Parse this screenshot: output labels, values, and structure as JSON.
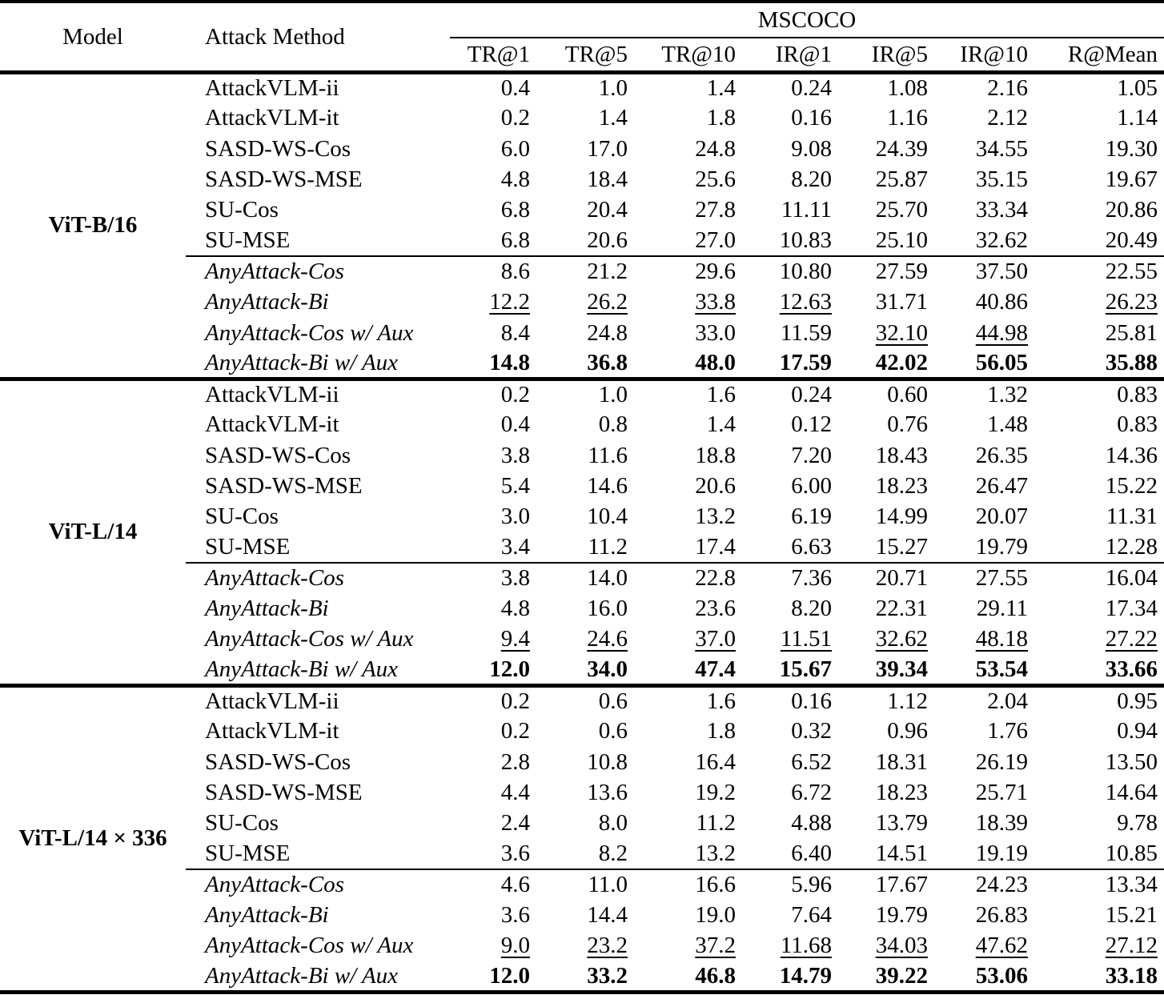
{
  "table": {
    "header": {
      "model": "Model",
      "attack_method": "Attack Method",
      "group": "MSCOCO",
      "metrics": [
        "TR@1",
        "TR@5",
        "TR@10",
        "IR@1",
        "IR@5",
        "IR@10",
        "R@Mean"
      ]
    },
    "blocks": [
      {
        "model": "ViT-B/16",
        "rows": [
          {
            "method": "AttackVLM-ii",
            "italic": false,
            "values": [
              "0.4",
              "1.0",
              "1.4",
              "0.24",
              "1.08",
              "2.16",
              "1.05"
            ],
            "styles": [
              "plain",
              "plain",
              "plain",
              "plain",
              "plain",
              "plain",
              "plain"
            ]
          },
          {
            "method": "AttackVLM-it",
            "italic": false,
            "values": [
              "0.2",
              "1.4",
              "1.8",
              "0.16",
              "1.16",
              "2.12",
              "1.14"
            ],
            "styles": [
              "plain",
              "plain",
              "plain",
              "plain",
              "plain",
              "plain",
              "plain"
            ]
          },
          {
            "method": "SASD-WS-Cos",
            "italic": false,
            "values": [
              "6.0",
              "17.0",
              "24.8",
              "9.08",
              "24.39",
              "34.55",
              "19.30"
            ],
            "styles": [
              "plain",
              "plain",
              "plain",
              "plain",
              "plain",
              "plain",
              "plain"
            ]
          },
          {
            "method": "SASD-WS-MSE",
            "italic": false,
            "values": [
              "4.8",
              "18.4",
              "25.6",
              "8.20",
              "25.87",
              "35.15",
              "19.67"
            ],
            "styles": [
              "plain",
              "plain",
              "plain",
              "plain",
              "plain",
              "plain",
              "plain"
            ]
          },
          {
            "method": "SU-Cos",
            "italic": false,
            "values": [
              "6.8",
              "20.4",
              "27.8",
              "11.11",
              "25.70",
              "33.34",
              "20.86"
            ],
            "styles": [
              "plain",
              "plain",
              "plain",
              "plain",
              "plain",
              "plain",
              "plain"
            ]
          },
          {
            "method": "SU-MSE",
            "italic": false,
            "values": [
              "6.8",
              "20.6",
              "27.0",
              "10.83",
              "25.10",
              "32.62",
              "20.49"
            ],
            "styles": [
              "plain",
              "plain",
              "plain",
              "plain",
              "plain",
              "plain",
              "plain"
            ]
          },
          {
            "method": "AnyAttack-Cos",
            "italic": true,
            "rule_above": true,
            "values": [
              "8.6",
              "21.2",
              "29.6",
              "10.80",
              "27.59",
              "37.50",
              "22.55"
            ],
            "styles": [
              "plain",
              "plain",
              "plain",
              "plain",
              "plain",
              "plain",
              "plain"
            ]
          },
          {
            "method": "AnyAttack-Bi",
            "italic": true,
            "values": [
              "12.2",
              "26.2",
              "33.8",
              "12.63",
              "31.71",
              "40.86",
              "26.23"
            ],
            "styles": [
              "underline",
              "underline",
              "underline",
              "underline",
              "plain",
              "plain",
              "underline"
            ]
          },
          {
            "method": "AnyAttack-Cos w/ Aux",
            "italic": true,
            "values": [
              "8.4",
              "24.8",
              "33.0",
              "11.59",
              "32.10",
              "44.98",
              "25.81"
            ],
            "styles": [
              "plain",
              "plain",
              "plain",
              "plain",
              "underline",
              "underline",
              "plain"
            ]
          },
          {
            "method": "AnyAttack-Bi w/ Aux",
            "italic": true,
            "values": [
              "14.8",
              "36.8",
              "48.0",
              "17.59",
              "42.02",
              "56.05",
              "35.88"
            ],
            "styles": [
              "bold",
              "bold",
              "bold",
              "bold",
              "bold",
              "bold",
              "bold"
            ]
          }
        ]
      },
      {
        "model": "ViT-L/14",
        "rows": [
          {
            "method": "AttackVLM-ii",
            "italic": false,
            "values": [
              "0.2",
              "1.0",
              "1.6",
              "0.24",
              "0.60",
              "1.32",
              "0.83"
            ],
            "styles": [
              "plain",
              "plain",
              "plain",
              "plain",
              "plain",
              "plain",
              "plain"
            ]
          },
          {
            "method": "AttackVLM-it",
            "italic": false,
            "values": [
              "0.4",
              "0.8",
              "1.4",
              "0.12",
              "0.76",
              "1.48",
              "0.83"
            ],
            "styles": [
              "plain",
              "plain",
              "plain",
              "plain",
              "plain",
              "plain",
              "plain"
            ]
          },
          {
            "method": "SASD-WS-Cos",
            "italic": false,
            "values": [
              "3.8",
              "11.6",
              "18.8",
              "7.20",
              "18.43",
              "26.35",
              "14.36"
            ],
            "styles": [
              "plain",
              "plain",
              "plain",
              "plain",
              "plain",
              "plain",
              "plain"
            ]
          },
          {
            "method": "SASD-WS-MSE",
            "italic": false,
            "values": [
              "5.4",
              "14.6",
              "20.6",
              "6.00",
              "18.23",
              "26.47",
              "15.22"
            ],
            "styles": [
              "plain",
              "plain",
              "plain",
              "plain",
              "plain",
              "plain",
              "plain"
            ]
          },
          {
            "method": "SU-Cos",
            "italic": false,
            "values": [
              "3.0",
              "10.4",
              "13.2",
              "6.19",
              "14.99",
              "20.07",
              "11.31"
            ],
            "styles": [
              "plain",
              "plain",
              "plain",
              "plain",
              "plain",
              "plain",
              "plain"
            ]
          },
          {
            "method": "SU-MSE",
            "italic": false,
            "values": [
              "3.4",
              "11.2",
              "17.4",
              "6.63",
              "15.27",
              "19.79",
              "12.28"
            ],
            "styles": [
              "plain",
              "plain",
              "plain",
              "plain",
              "plain",
              "plain",
              "plain"
            ]
          },
          {
            "method": "AnyAttack-Cos",
            "italic": true,
            "rule_above": true,
            "values": [
              "3.8",
              "14.0",
              "22.8",
              "7.36",
              "20.71",
              "27.55",
              "16.04"
            ],
            "styles": [
              "plain",
              "plain",
              "plain",
              "plain",
              "plain",
              "plain",
              "plain"
            ]
          },
          {
            "method": "AnyAttack-Bi",
            "italic": true,
            "values": [
              "4.8",
              "16.0",
              "23.6",
              "8.20",
              "22.31",
              "29.11",
              "17.34"
            ],
            "styles": [
              "plain",
              "plain",
              "plain",
              "plain",
              "plain",
              "plain",
              "plain"
            ]
          },
          {
            "method": "AnyAttack-Cos w/ Aux",
            "italic": true,
            "values": [
              "9.4",
              "24.6",
              "37.0",
              "11.51",
              "32.62",
              "48.18",
              "27.22"
            ],
            "styles": [
              "underline",
              "underline",
              "underline",
              "underline",
              "underline",
              "underline",
              "underline"
            ]
          },
          {
            "method": "AnyAttack-Bi w/ Aux",
            "italic": true,
            "values": [
              "12.0",
              "34.0",
              "47.4",
              "15.67",
              "39.34",
              "53.54",
              "33.66"
            ],
            "styles": [
              "bold",
              "bold",
              "bold",
              "bold",
              "bold",
              "bold",
              "bold"
            ]
          }
        ]
      },
      {
        "model": "ViT-L/14 × 336",
        "rows": [
          {
            "method": "AttackVLM-ii",
            "italic": false,
            "values": [
              "0.2",
              "0.6",
              "1.6",
              "0.16",
              "1.12",
              "2.04",
              "0.95"
            ],
            "styles": [
              "plain",
              "plain",
              "plain",
              "plain",
              "plain",
              "plain",
              "plain"
            ]
          },
          {
            "method": "AttackVLM-it",
            "italic": false,
            "values": [
              "0.2",
              "0.6",
              "1.8",
              "0.32",
              "0.96",
              "1.76",
              "0.94"
            ],
            "styles": [
              "plain",
              "plain",
              "plain",
              "plain",
              "plain",
              "plain",
              "plain"
            ]
          },
          {
            "method": "SASD-WS-Cos",
            "italic": false,
            "values": [
              "2.8",
              "10.8",
              "16.4",
              "6.52",
              "18.31",
              "26.19",
              "13.50"
            ],
            "styles": [
              "plain",
              "plain",
              "plain",
              "plain",
              "plain",
              "plain",
              "plain"
            ]
          },
          {
            "method": "SASD-WS-MSE",
            "italic": false,
            "values": [
              "4.4",
              "13.6",
              "19.2",
              "6.72",
              "18.23",
              "25.71",
              "14.64"
            ],
            "styles": [
              "plain",
              "plain",
              "plain",
              "plain",
              "plain",
              "plain",
              "plain"
            ]
          },
          {
            "method": "SU-Cos",
            "italic": false,
            "values": [
              "2.4",
              "8.0",
              "11.2",
              "4.88",
              "13.79",
              "18.39",
              "9.78"
            ],
            "styles": [
              "plain",
              "plain",
              "plain",
              "plain",
              "plain",
              "plain",
              "plain"
            ]
          },
          {
            "method": "SU-MSE",
            "italic": false,
            "values": [
              "3.6",
              "8.2",
              "13.2",
              "6.40",
              "14.51",
              "19.19",
              "10.85"
            ],
            "styles": [
              "plain",
              "plain",
              "plain",
              "plain",
              "plain",
              "plain",
              "plain"
            ]
          },
          {
            "method": "AnyAttack-Cos",
            "italic": true,
            "rule_above": true,
            "values": [
              "4.6",
              "11.0",
              "16.6",
              "5.96",
              "17.67",
              "24.23",
              "13.34"
            ],
            "styles": [
              "plain",
              "plain",
              "plain",
              "plain",
              "plain",
              "plain",
              "plain"
            ]
          },
          {
            "method": "AnyAttack-Bi",
            "italic": true,
            "values": [
              "3.6",
              "14.4",
              "19.0",
              "7.64",
              "19.79",
              "26.83",
              "15.21"
            ],
            "styles": [
              "plain",
              "plain",
              "plain",
              "plain",
              "plain",
              "plain",
              "plain"
            ]
          },
          {
            "method": "AnyAttack-Cos w/ Aux",
            "italic": true,
            "values": [
              "9.0",
              "23.2",
              "37.2",
              "11.68",
              "34.03",
              "47.62",
              "27.12"
            ],
            "styles": [
              "underline",
              "underline",
              "underline",
              "underline",
              "underline",
              "underline",
              "underline"
            ]
          },
          {
            "method": "AnyAttack-Bi w/ Aux",
            "italic": true,
            "values": [
              "12.0",
              "33.2",
              "46.8",
              "14.79",
              "39.22",
              "53.06",
              "33.18"
            ],
            "styles": [
              "bold",
              "bold",
              "bold",
              "bold",
              "bold",
              "bold",
              "bold"
            ]
          }
        ]
      }
    ]
  }
}
